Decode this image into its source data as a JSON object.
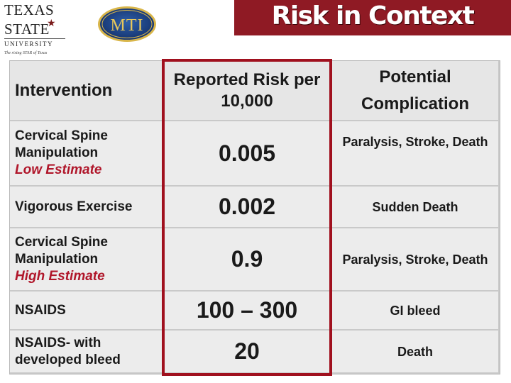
{
  "header": {
    "university_logo": {
      "line1": "TEXAS",
      "line2": "STATE",
      "line3": "UNIVERSITY",
      "tagline": "The rising STAR of Texas"
    },
    "org_logo": {
      "text": "MTI"
    },
    "title": "Risk in Context",
    "banner_color": "#8f1a24"
  },
  "table": {
    "columns": [
      "Intervention",
      "Reported Risk per 10,000",
      "Potential Complication"
    ],
    "rows": [
      {
        "intervention": [
          "Cervical Spine",
          "Manipulation"
        ],
        "estimate": "Low Estimate",
        "risk": "0.005",
        "complication": "Paralysis, Stroke, Death"
      },
      {
        "intervention": [
          "Vigorous Exercise"
        ],
        "estimate": "",
        "risk": "0.002",
        "complication": "Sudden Death"
      },
      {
        "intervention": [
          "Cervical Spine",
          "Manipulation"
        ],
        "estimate": "High Estimate",
        "risk": "0.9",
        "complication": "Paralysis, Stroke, Death"
      },
      {
        "intervention": [
          "NSAIDS"
        ],
        "estimate": "",
        "risk": "100 – 300",
        "complication": "GI bleed"
      },
      {
        "intervention": [
          "NSAIDS- with",
          "developed bleed"
        ],
        "estimate": "",
        "risk": "20",
        "complication": "Death"
      }
    ],
    "highlight_color": "#a0101e",
    "estimate_color": "#b0162a"
  }
}
